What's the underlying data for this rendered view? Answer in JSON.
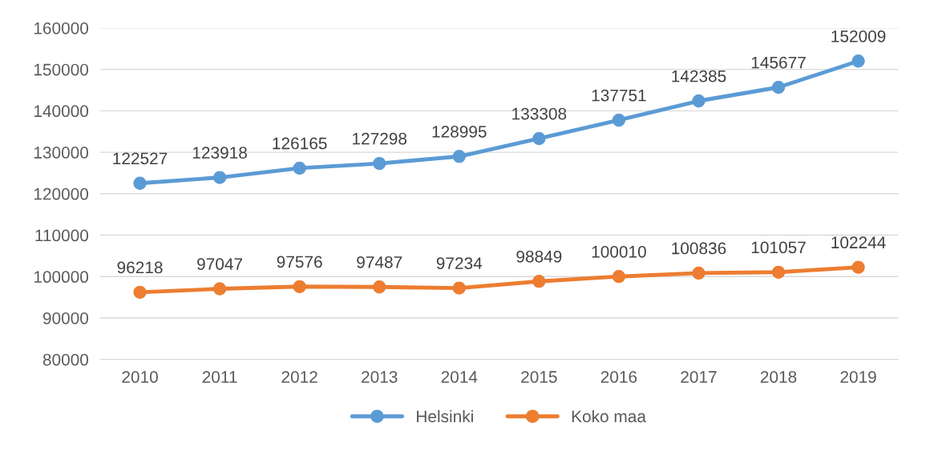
{
  "chart_data": {
    "type": "line",
    "categories": [
      "2010",
      "2011",
      "2012",
      "2013",
      "2014",
      "2015",
      "2016",
      "2017",
      "2018",
      "2019"
    ],
    "series": [
      {
        "name": "Helsinki",
        "color": "#5b9bd5",
        "values": [
          122527,
          123918,
          126165,
          127298,
          128995,
          133308,
          137751,
          142385,
          145677,
          152009
        ]
      },
      {
        "name": "Koko maa",
        "color": "#ed7d31",
        "values": [
          96218,
          97047,
          97576,
          97487,
          97234,
          98849,
          100010,
          100836,
          101057,
          102244
        ]
      }
    ],
    "ylim": [
      80000,
      160000
    ],
    "yticks": [
      80000,
      90000,
      100000,
      110000,
      120000,
      130000,
      140000,
      150000,
      160000
    ],
    "grid": "y",
    "legend": "bottom",
    "marker": "circle",
    "line_style": "solid",
    "data_labels": true
  }
}
